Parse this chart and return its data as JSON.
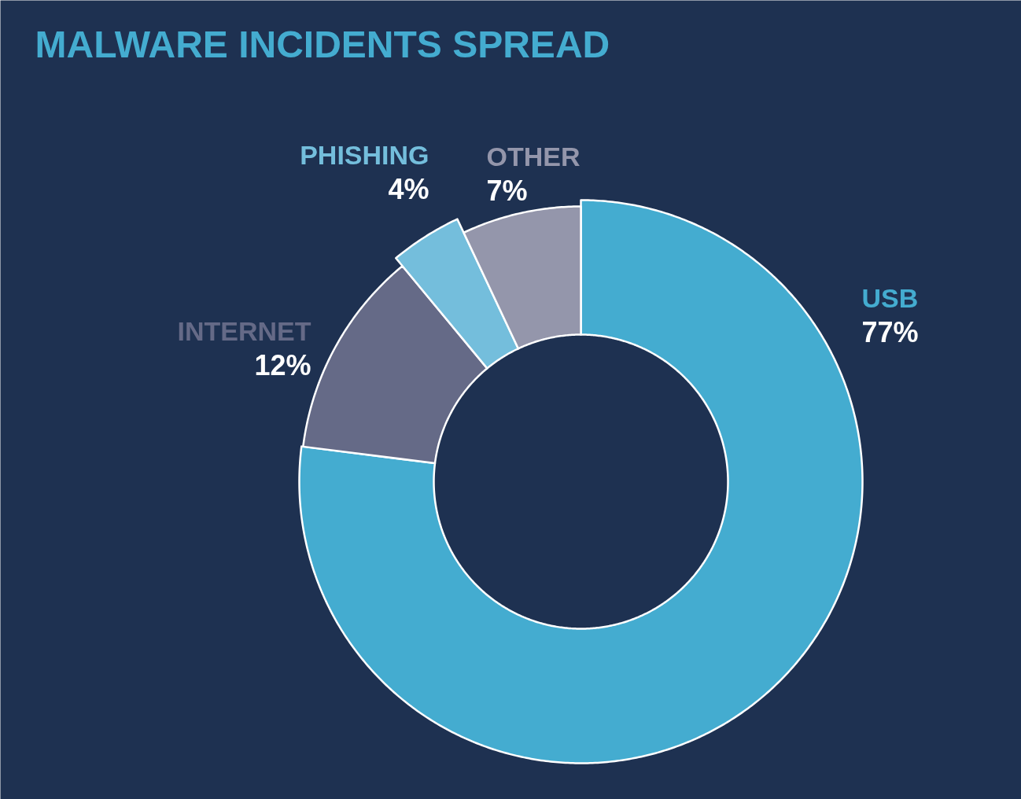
{
  "chart_data": {
    "type": "donut",
    "title": "MALWARE INCIDENTS SPREAD",
    "categories": [
      "USB",
      "INTERNET",
      "PHISHING",
      "OTHER"
    ],
    "values": [
      77,
      12,
      4,
      7
    ],
    "value_labels": [
      "77%",
      "12%",
      "4%",
      "7%"
    ],
    "colors": [
      "#44acd0",
      "#656a87",
      "#74bedc",
      "#9496ab"
    ]
  }
}
